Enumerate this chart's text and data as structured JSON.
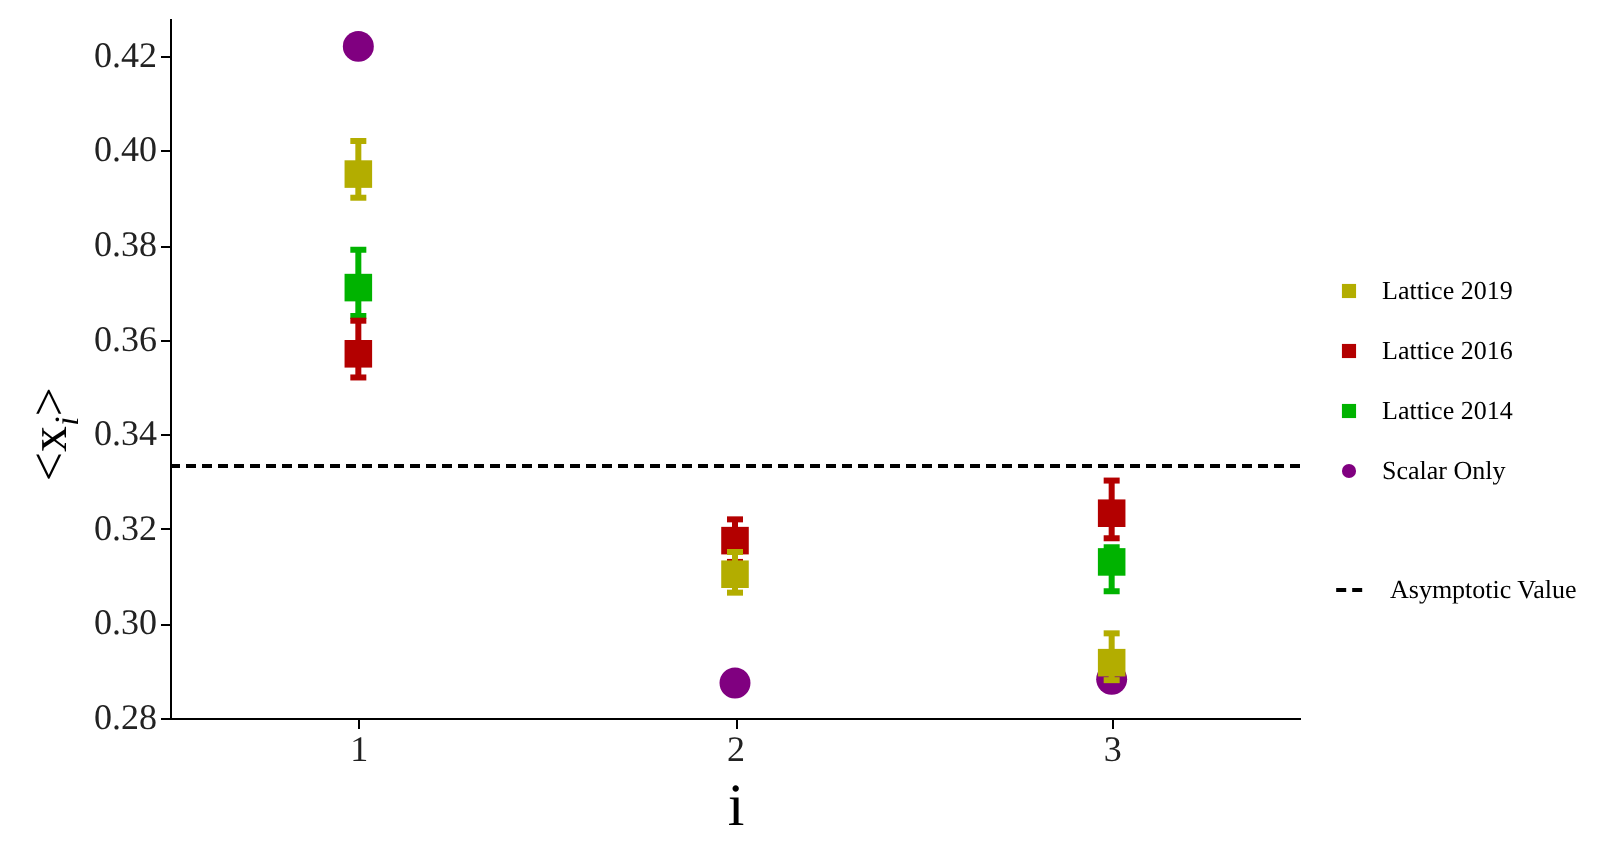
{
  "chart_data": {
    "type": "scatter",
    "xlabel": "i",
    "ylabel": "<x$_{i}$>",
    "x": [
      1,
      2,
      3
    ],
    "xlim": [
      0.5,
      3.5
    ],
    "xticks": [
      1,
      2,
      3
    ],
    "ylim": [
      0.28,
      0.428
    ],
    "yticks": [
      0.28,
      {
        "value": 0.3,
        "label": "0.30"
      },
      0.32,
      0.34,
      0.36,
      0.38,
      {
        "value": 0.4,
        "label": "0.40"
      },
      0.42
    ],
    "series": [
      {
        "name": "Lattice 2019",
        "color": "#b3ad00",
        "marker": "square",
        "values": [
          0.395,
          0.3104,
          0.2917
        ],
        "errors": [
          [
            0.39,
            0.402
          ],
          [
            0.3065,
            0.3151
          ],
          [
            0.288,
            0.2979
          ]
        ]
      },
      {
        "name": "Lattice 2016",
        "color": "#b30000",
        "marker": "square",
        "values": [
          0.357,
          0.3175,
          0.3233
        ],
        "errors": [
          [
            0.352,
            0.364
          ],
          [
            0.313,
            0.322
          ],
          [
            0.318,
            0.3302
          ]
        ]
      },
      {
        "name": "Lattice 2014",
        "color": "#00b300",
        "marker": "square",
        "values": [
          0.371,
          null,
          0.313
        ],
        "errors": [
          [
            0.365,
            0.379
          ],
          null,
          [
            0.3068,
            0.3161
          ]
        ]
      },
      {
        "name": "Scalar Only",
        "color": "#800080",
        "marker": "circle",
        "values": [
          0.422,
          0.2874,
          0.2882
        ]
      }
    ],
    "ref_lines": [
      {
        "axis": "y",
        "value": 0.3333,
        "label": "Asymptotic Value",
        "color": "#000000",
        "line_style": "dashed"
      }
    ],
    "legend": "right"
  }
}
